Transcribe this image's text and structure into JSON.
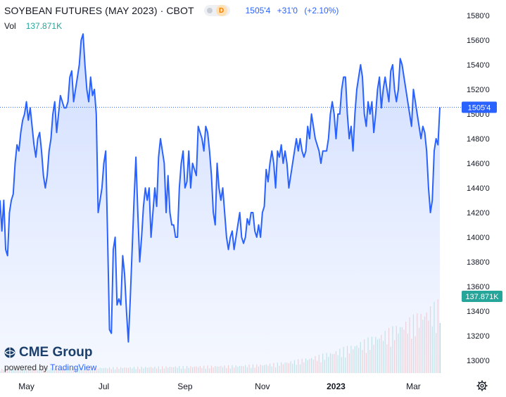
{
  "header": {
    "title": "SOYBEAN FUTURES (MAY 2023) · CBOT",
    "interval": "D",
    "last": "1505'4",
    "change": "+31'0",
    "change_pct": "(+2.10%)"
  },
  "volume": {
    "label": "Vol",
    "value": "137.871K"
  },
  "branding": {
    "logo": "CME Group",
    "powered_by": "powered by",
    "provider": "TradingView"
  },
  "colors": {
    "line": "#2962ff",
    "area": "#dbe5ff",
    "up": "#26a69a",
    "down": "#ef5350",
    "volume_badge": "#26a69a"
  },
  "chart_data": {
    "type": "area",
    "price_axis": {
      "min": 1290,
      "max": 1590,
      "ticks": [
        "1580'0",
        "1560'0",
        "1540'0",
        "1520'0",
        "1500'0",
        "1480'0",
        "1460'0",
        "1440'0",
        "1420'0",
        "1400'0",
        "1380'0",
        "1360'0",
        "1340'0",
        "1320'0",
        "1300'0"
      ]
    },
    "x_labels": [
      {
        "text": "May",
        "i": 14,
        "bold": false
      },
      {
        "text": "Jul",
        "i": 55,
        "bold": false
      },
      {
        "text": "Sep",
        "i": 98,
        "bold": false
      },
      {
        "text": "Nov",
        "i": 139,
        "bold": false
      },
      {
        "text": "2023",
        "i": 178,
        "bold": true
      },
      {
        "text": "Mar",
        "i": 219,
        "bold": false
      }
    ],
    "last_price_label": "1505'4",
    "last_price": 1505.5,
    "volume_label": "137.871K",
    "values": [
      1430,
      1405,
      1430,
      1390,
      1385,
      1420,
      1430,
      1435,
      1460,
      1475,
      1470,
      1485,
      1495,
      1500,
      1510,
      1495,
      1505,
      1490,
      1475,
      1465,
      1480,
      1485,
      1470,
      1450,
      1440,
      1450,
      1470,
      1480,
      1500,
      1510,
      1485,
      1500,
      1515,
      1510,
      1505,
      1505,
      1510,
      1530,
      1535,
      1510,
      1520,
      1530,
      1540,
      1560,
      1565,
      1540,
      1520,
      1510,
      1530,
      1515,
      1520,
      1500,
      1420,
      1430,
      1440,
      1460,
      1470,
      1400,
      1325,
      1322,
      1390,
      1400,
      1345,
      1350,
      1345,
      1385,
      1370,
      1340,
      1315,
      1350,
      1390,
      1430,
      1465,
      1420,
      1380,
      1400,
      1425,
      1440,
      1430,
      1440,
      1400,
      1420,
      1440,
      1425,
      1465,
      1480,
      1470,
      1460,
      1420,
      1450,
      1420,
      1410,
      1410,
      1400,
      1400,
      1440,
      1460,
      1470,
      1440,
      1445,
      1470,
      1440,
      1460,
      1455,
      1450,
      1490,
      1485,
      1480,
      1470,
      1490,
      1485,
      1470,
      1450,
      1420,
      1410,
      1460,
      1440,
      1430,
      1440,
      1420,
      1400,
      1390,
      1400,
      1405,
      1390,
      1400,
      1410,
      1420,
      1400,
      1395,
      1400,
      1415,
      1410,
      1420,
      1420,
      1405,
      1400,
      1410,
      1400,
      1420,
      1425,
      1455,
      1445,
      1460,
      1470,
      1460,
      1440,
      1470,
      1465,
      1475,
      1460,
      1470,
      1460,
      1440,
      1450,
      1460,
      1470,
      1480,
      1470,
      1480,
      1470,
      1465,
      1470,
      1490,
      1480,
      1500,
      1490,
      1480,
      1475,
      1470,
      1460,
      1470,
      1470,
      1470,
      1480,
      1500,
      1510,
      1500,
      1480,
      1500,
      1500,
      1520,
      1530,
      1530,
      1500,
      1480,
      1490,
      1470,
      1500,
      1520,
      1530,
      1540,
      1530,
      1500,
      1490,
      1510,
      1500,
      1510,
      1485,
      1500,
      1520,
      1530,
      1505,
      1520,
      1530,
      1520,
      1510,
      1535,
      1540,
      1520,
      1510,
      1520,
      1545,
      1540,
      1530,
      1520,
      1510,
      1500,
      1490,
      1520,
      1510,
      1500,
      1490,
      1480,
      1490,
      1485,
      1470,
      1440,
      1420,
      1430,
      1470,
      1480,
      1475,
      1505.5
    ]
  }
}
